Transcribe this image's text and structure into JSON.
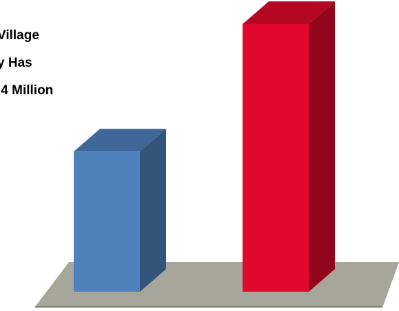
{
  "caption": {
    "lines": [
      " Village",
      "y Has",
      ".4 Million"
    ]
  },
  "chart_data": {
    "type": "bar",
    "style": "3d-column",
    "categories": [
      "",
      ""
    ],
    "values": [
      4.4,
      8.4
    ],
    "ylim": [
      0,
      10
    ],
    "grid": false,
    "legend": "none",
    "colors": [
      "#4f81bd",
      "#e0092d"
    ],
    "floor_color": "#a7a69a"
  }
}
